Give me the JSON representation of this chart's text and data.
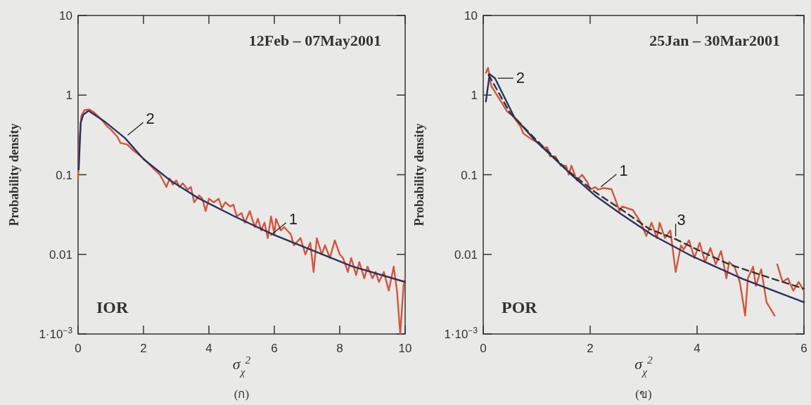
{
  "chart_data": [
    {
      "type": "line",
      "title": "12Feb – 07May2001",
      "xlabel": "σ$_{χ}$$^{2}$",
      "ylabel": "Probability density",
      "annotations": [
        "IOR",
        "(ก)"
      ],
      "log": "y",
      "xlim": [
        0,
        10
      ],
      "xticks": [
        0,
        2,
        4,
        6,
        8,
        10
      ],
      "ylim": [
        0.001,
        10
      ],
      "yticks": [
        {
          "value": 0.001,
          "label": "1·10$^{−3}$"
        },
        0.01,
        0.1,
        1,
        10
      ],
      "series": [
        {
          "name": "1",
          "color": "#d4553c",
          "line_style": "solid",
          "x": [
            0,
            0.05,
            0.1,
            0.2,
            0.35,
            0.5,
            0.7,
            0.9,
            1.0,
            1.2,
            1.3,
            1.5,
            1.7,
            2.0,
            2.3,
            2.5,
            2.6,
            2.7,
            2.8,
            2.9,
            3.0,
            3.1,
            3.2,
            3.35,
            3.45,
            3.55,
            3.7,
            3.8,
            3.9,
            4.0,
            4.15,
            4.3,
            4.4,
            4.5,
            4.65,
            4.75,
            4.85,
            5.0,
            5.1,
            5.25,
            5.4,
            5.5,
            5.6,
            5.7,
            5.8,
            5.9,
            6.0,
            6.05,
            6.2,
            6.3,
            6.5,
            6.6,
            6.8,
            6.95,
            7.1,
            7.2,
            7.3,
            7.45,
            7.55,
            7.7,
            7.85,
            8.0,
            8.1,
            8.25,
            8.35,
            8.5,
            8.6,
            8.75,
            8.85,
            9.0,
            9.1,
            9.2,
            9.35,
            9.5,
            9.65,
            9.75,
            9.85,
            9.95,
            10
          ],
          "values": [
            0.09,
            0.3,
            0.55,
            0.65,
            0.66,
            0.6,
            0.5,
            0.4,
            0.37,
            0.3,
            0.25,
            0.24,
            0.2,
            0.16,
            0.12,
            0.1,
            0.085,
            0.07,
            0.09,
            0.075,
            0.085,
            0.07,
            0.078,
            0.065,
            0.07,
            0.045,
            0.055,
            0.05,
            0.035,
            0.05,
            0.045,
            0.05,
            0.038,
            0.045,
            0.04,
            0.042,
            0.03,
            0.033,
            0.025,
            0.035,
            0.022,
            0.028,
            0.02,
            0.025,
            0.016,
            0.03,
            0.018,
            0.028,
            0.02,
            0.022,
            0.018,
            0.013,
            0.016,
            0.01,
            0.014,
            0.006,
            0.016,
            0.01,
            0.013,
            0.009,
            0.015,
            0.01,
            0.009,
            0.006,
            0.009,
            0.0055,
            0.008,
            0.005,
            0.007,
            0.005,
            0.006,
            0.0045,
            0.006,
            0.0035,
            0.007,
            0.0035,
            0.001,
            0.004,
            0.005
          ]
        },
        {
          "name": "2",
          "color": "#2b3160",
          "line_style": "solid",
          "x": [
            0.02,
            0.08,
            0.16,
            0.32,
            0.8,
            1.43,
            2,
            2.8,
            3.67,
            4.78,
            5.98,
            7.17,
            8.37,
            10
          ],
          "values": [
            0.116,
            0.45,
            0.57,
            0.635,
            0.47,
            0.29,
            0.157,
            0.086,
            0.051,
            0.03,
            0.0176,
            0.0112,
            0.0071,
            0.0045
          ]
        }
      ]
    },
    {
      "type": "line",
      "title": "25Jan – 30Mar2001",
      "xlabel": "σ$_{χ}$$^{2}$",
      "ylabel": "Probability density",
      "annotations": [
        "POR",
        "(ข)"
      ],
      "log": "y",
      "xlim": [
        0,
        6
      ],
      "xticks": [
        0,
        2,
        4,
        6
      ],
      "ylim": [
        0.001,
        10
      ],
      "yticks": [
        {
          "value": 0.001,
          "label": "1·10$^{−3}$"
        },
        0.01,
        0.1,
        1,
        10
      ],
      "series": [
        {
          "name": "1",
          "color": "#d4553c",
          "line_style": "solid",
          "x": [
            0.05,
            0.09,
            0.15,
            0.3,
            0.45,
            0.55,
            0.7,
            0.75,
            0.9,
            1.05,
            1.1,
            1.2,
            1.25,
            1.35,
            1.45,
            1.55,
            1.6,
            1.65,
            1.75,
            1.85,
            1.95,
            2.0,
            2.1,
            2.15,
            2.25,
            2.4,
            2.55,
            2.6,
            2.8,
            2.95,
            3.05,
            3.15,
            3.25,
            3.3,
            3.4,
            3.5,
            3.6,
            3.7,
            3.75,
            3.85,
            3.95,
            4.05,
            4.15,
            4.25,
            4.35,
            4.45,
            4.55,
            4.6,
            4.7,
            4.8,
            4.9,
            4.95,
            5.05,
            5.1,
            5.2,
            5.3,
            5.45,
            5.47,
            5.5,
            5.6,
            5.7,
            5.8,
            5.9,
            6
          ],
          "values": [
            1.9,
            2.2,
            1.3,
            0.9,
            0.62,
            0.55,
            0.4,
            0.33,
            0.28,
            0.25,
            0.22,
            0.22,
            0.17,
            0.17,
            0.13,
            0.13,
            0.1,
            0.13,
            0.085,
            0.1,
            0.08,
            0.065,
            0.07,
            0.065,
            0.068,
            0.066,
            0.035,
            0.04,
            0.036,
            0.025,
            0.017,
            0.025,
            0.016,
            0.025,
            0.016,
            0.02,
            0.006,
            0.013,
            0.0115,
            0.015,
            0.009,
            0.014,
            0.008,
            0.012,
            0.0075,
            0.011,
            0.005,
            0.008,
            0.007,
            0.0045,
            0.0017,
            0.005,
            0.007,
            0.004,
            0.0065,
            0.0025,
            0.0017,
            null,
            0.0075,
            0.0045,
            0.005,
            0.0035,
            0.0045,
            0.0035
          ]
        },
        {
          "name": "2",
          "color": "#2b3160",
          "line_style": "solid",
          "x": [
            0.05,
            0.12,
            0.22,
            0.58,
            0.97,
            1.65,
            2.09,
            2.58,
            3.16,
            3.89,
            4.86,
            6
          ],
          "values": [
            0.83,
            1.83,
            1.63,
            0.53,
            0.27,
            0.1,
            0.055,
            0.032,
            0.0176,
            0.0096,
            0.0049,
            0.0025
          ]
        },
        {
          "name": "3",
          "color": "#333333",
          "line_style": "dashed",
          "x": [
            0.1,
            0.5,
            1.0,
            1.6,
            2.1,
            2.6,
            3.1,
            3.6,
            4.0,
            4.6,
            5.2,
            6
          ],
          "values": [
            1.8,
            0.6,
            0.27,
            0.11,
            0.06,
            0.036,
            0.021,
            0.0155,
            0.0115,
            0.0075,
            0.0055,
            0.0037
          ]
        }
      ]
    }
  ]
}
